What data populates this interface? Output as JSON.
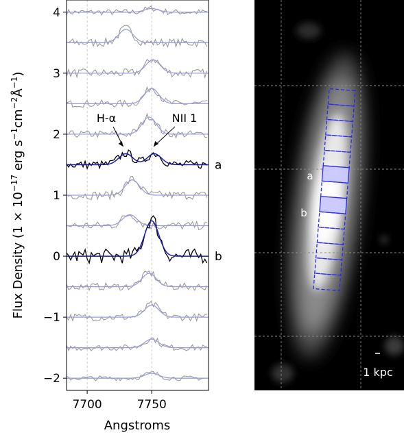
{
  "chart_data": [
    {
      "type": "line",
      "title": "",
      "xlabel": "Angstroms",
      "ylabel": "Flux Density (1 × 10",
      "ylabel_exp": "−17",
      "ylabel_unit": " erg s",
      "ylabel_unit2": "cm",
      "ylabel_unit3": "Å",
      "ylabel_end": ")",
      "ylabel_full": "Flux Density (1 × 10^−17 erg s^−1 cm^−2 Å^−1)",
      "xlim": [
        7684,
        7794
      ],
      "ylim": [
        -2.2,
        4.2
      ],
      "x_ticks": [
        7700,
        7750
      ],
      "y_ticks": [
        -2,
        -1,
        0,
        1,
        2,
        3,
        4
      ],
      "y_tick_labels": [
        "−2",
        "−1",
        "0",
        "1",
        "2",
        "3",
        "4"
      ],
      "grid_x": [
        7700,
        7750
      ],
      "offsets": [
        4.0,
        3.5,
        3.0,
        2.5,
        2.0,
        1.5,
        1.0,
        0.5,
        0.0,
        -0.5,
        -1.0,
        -1.5,
        -2.0
      ],
      "highlighted_rows": [
        {
          "label": "a",
          "offset": 1.5
        },
        {
          "label": "b",
          "offset": 0.0
        }
      ],
      "line_markers": [
        {
          "label": "H-α",
          "wavelength": 7729
        },
        {
          "label": "NII 1",
          "wavelength": 7751
        }
      ],
      "series": [
        {
          "offset": 4.0,
          "amp": 0.06,
          "center": 7750,
          "noise": 0.05
        },
        {
          "offset": 3.5,
          "amp": 0.22,
          "center": 7730,
          "noise": 0.07
        },
        {
          "offset": 3.0,
          "amp": 0.22,
          "center": 7751,
          "noise": 0.07
        },
        {
          "offset": 2.5,
          "amp": 0.25,
          "center": 7750,
          "noise": 0.06
        },
        {
          "offset": 2.0,
          "amp": 0.28,
          "center": 7748,
          "noise": 0.06
        },
        {
          "offset": 1.5,
          "amp": 0.18,
          "center": 7730,
          "amp2": 0.18,
          "center2": 7752,
          "noise": 0.07
        },
        {
          "offset": 1.0,
          "amp": 0.25,
          "center": 7735,
          "noise": 0.07
        },
        {
          "offset": 0.5,
          "amp": 0.18,
          "center": 7733,
          "noise": 0.07
        },
        {
          "offset": 0.0,
          "amp": 0.58,
          "center": 7750,
          "noise": 0.12
        },
        {
          "offset": -0.5,
          "amp": 0.22,
          "center": 7748,
          "noise": 0.06
        },
        {
          "offset": -1.0,
          "amp": 0.2,
          "center": 7750,
          "noise": 0.06
        },
        {
          "offset": -1.5,
          "amp": 0.14,
          "center": 7750,
          "noise": 0.05
        },
        {
          "offset": -2.0,
          "amp": 0.08,
          "center": 7750,
          "noise": 0.04
        }
      ],
      "colors": {
        "data": "#999999",
        "highlight": "#000000",
        "fit": "#9c9cdc",
        "fit_highlight": "#1a1aaa",
        "grid": "#bbbbbb"
      }
    },
    {
      "type": "image",
      "scale_bar_label": "1 kpc",
      "aperture_labels": [
        "a",
        "b"
      ],
      "aperture_count": 13,
      "filled_apertures": [
        5,
        7
      ],
      "colors": {
        "background": "#000000",
        "grid": "#888888",
        "aperture": "#2a2aee",
        "aperture_fill": "#c8c8ff"
      }
    }
  ]
}
